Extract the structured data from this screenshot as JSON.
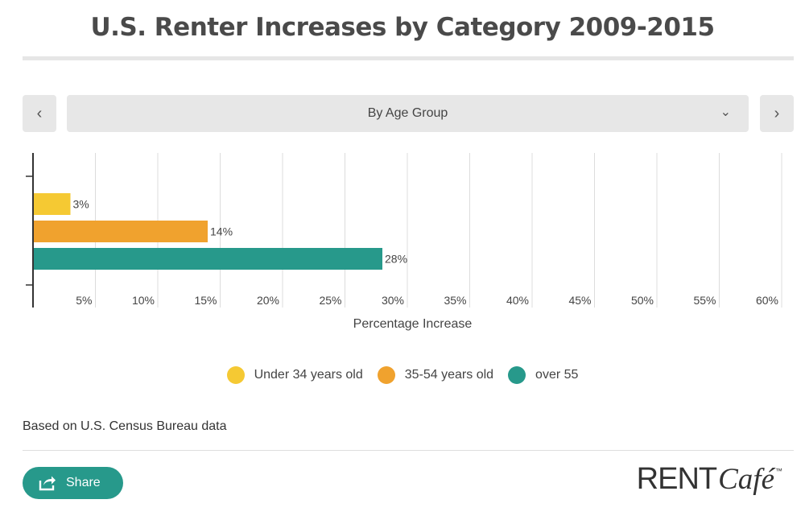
{
  "title": "U.S. Renter Increases by Category 2009-2015",
  "nav": {
    "prev_glyph": "‹",
    "next_glyph": "›"
  },
  "selector": {
    "label": "By Age Group",
    "chevron_glyph": "⌄"
  },
  "chart_data": {
    "type": "bar",
    "orientation": "horizontal",
    "categories": [
      "Under 34 years old",
      "35-54 years old",
      "over 55"
    ],
    "values": [
      3,
      14,
      28
    ],
    "value_labels": [
      "3%",
      "14%",
      "28%"
    ],
    "colors": [
      "#f5c933",
      "#f0a22e",
      "#27998b"
    ],
    "xlabel": "Percentage Increase",
    "xlim": [
      0,
      60
    ],
    "x_ticks": [
      5,
      10,
      15,
      20,
      25,
      30,
      35,
      40,
      45,
      50,
      55,
      60
    ],
    "x_tick_labels": [
      "5%",
      "10%",
      "15%",
      "20%",
      "25%",
      "30%",
      "35%",
      "40%",
      "45%",
      "50%",
      "55%",
      "60%"
    ],
    "grid": true,
    "legend_position": "bottom"
  },
  "legend": [
    {
      "label": "Under 34 years old",
      "color": "#f5c933"
    },
    {
      "label": "35-54 years old",
      "color": "#f0a22e"
    },
    {
      "label": "over 55",
      "color": "#27998b"
    }
  ],
  "source_text": "Based on U.S. Census Bureau data",
  "share": {
    "label": "Share",
    "icon": "share-icon"
  },
  "brand": {
    "rent": "RENT",
    "cafe": "Café",
    "tm": "™"
  }
}
